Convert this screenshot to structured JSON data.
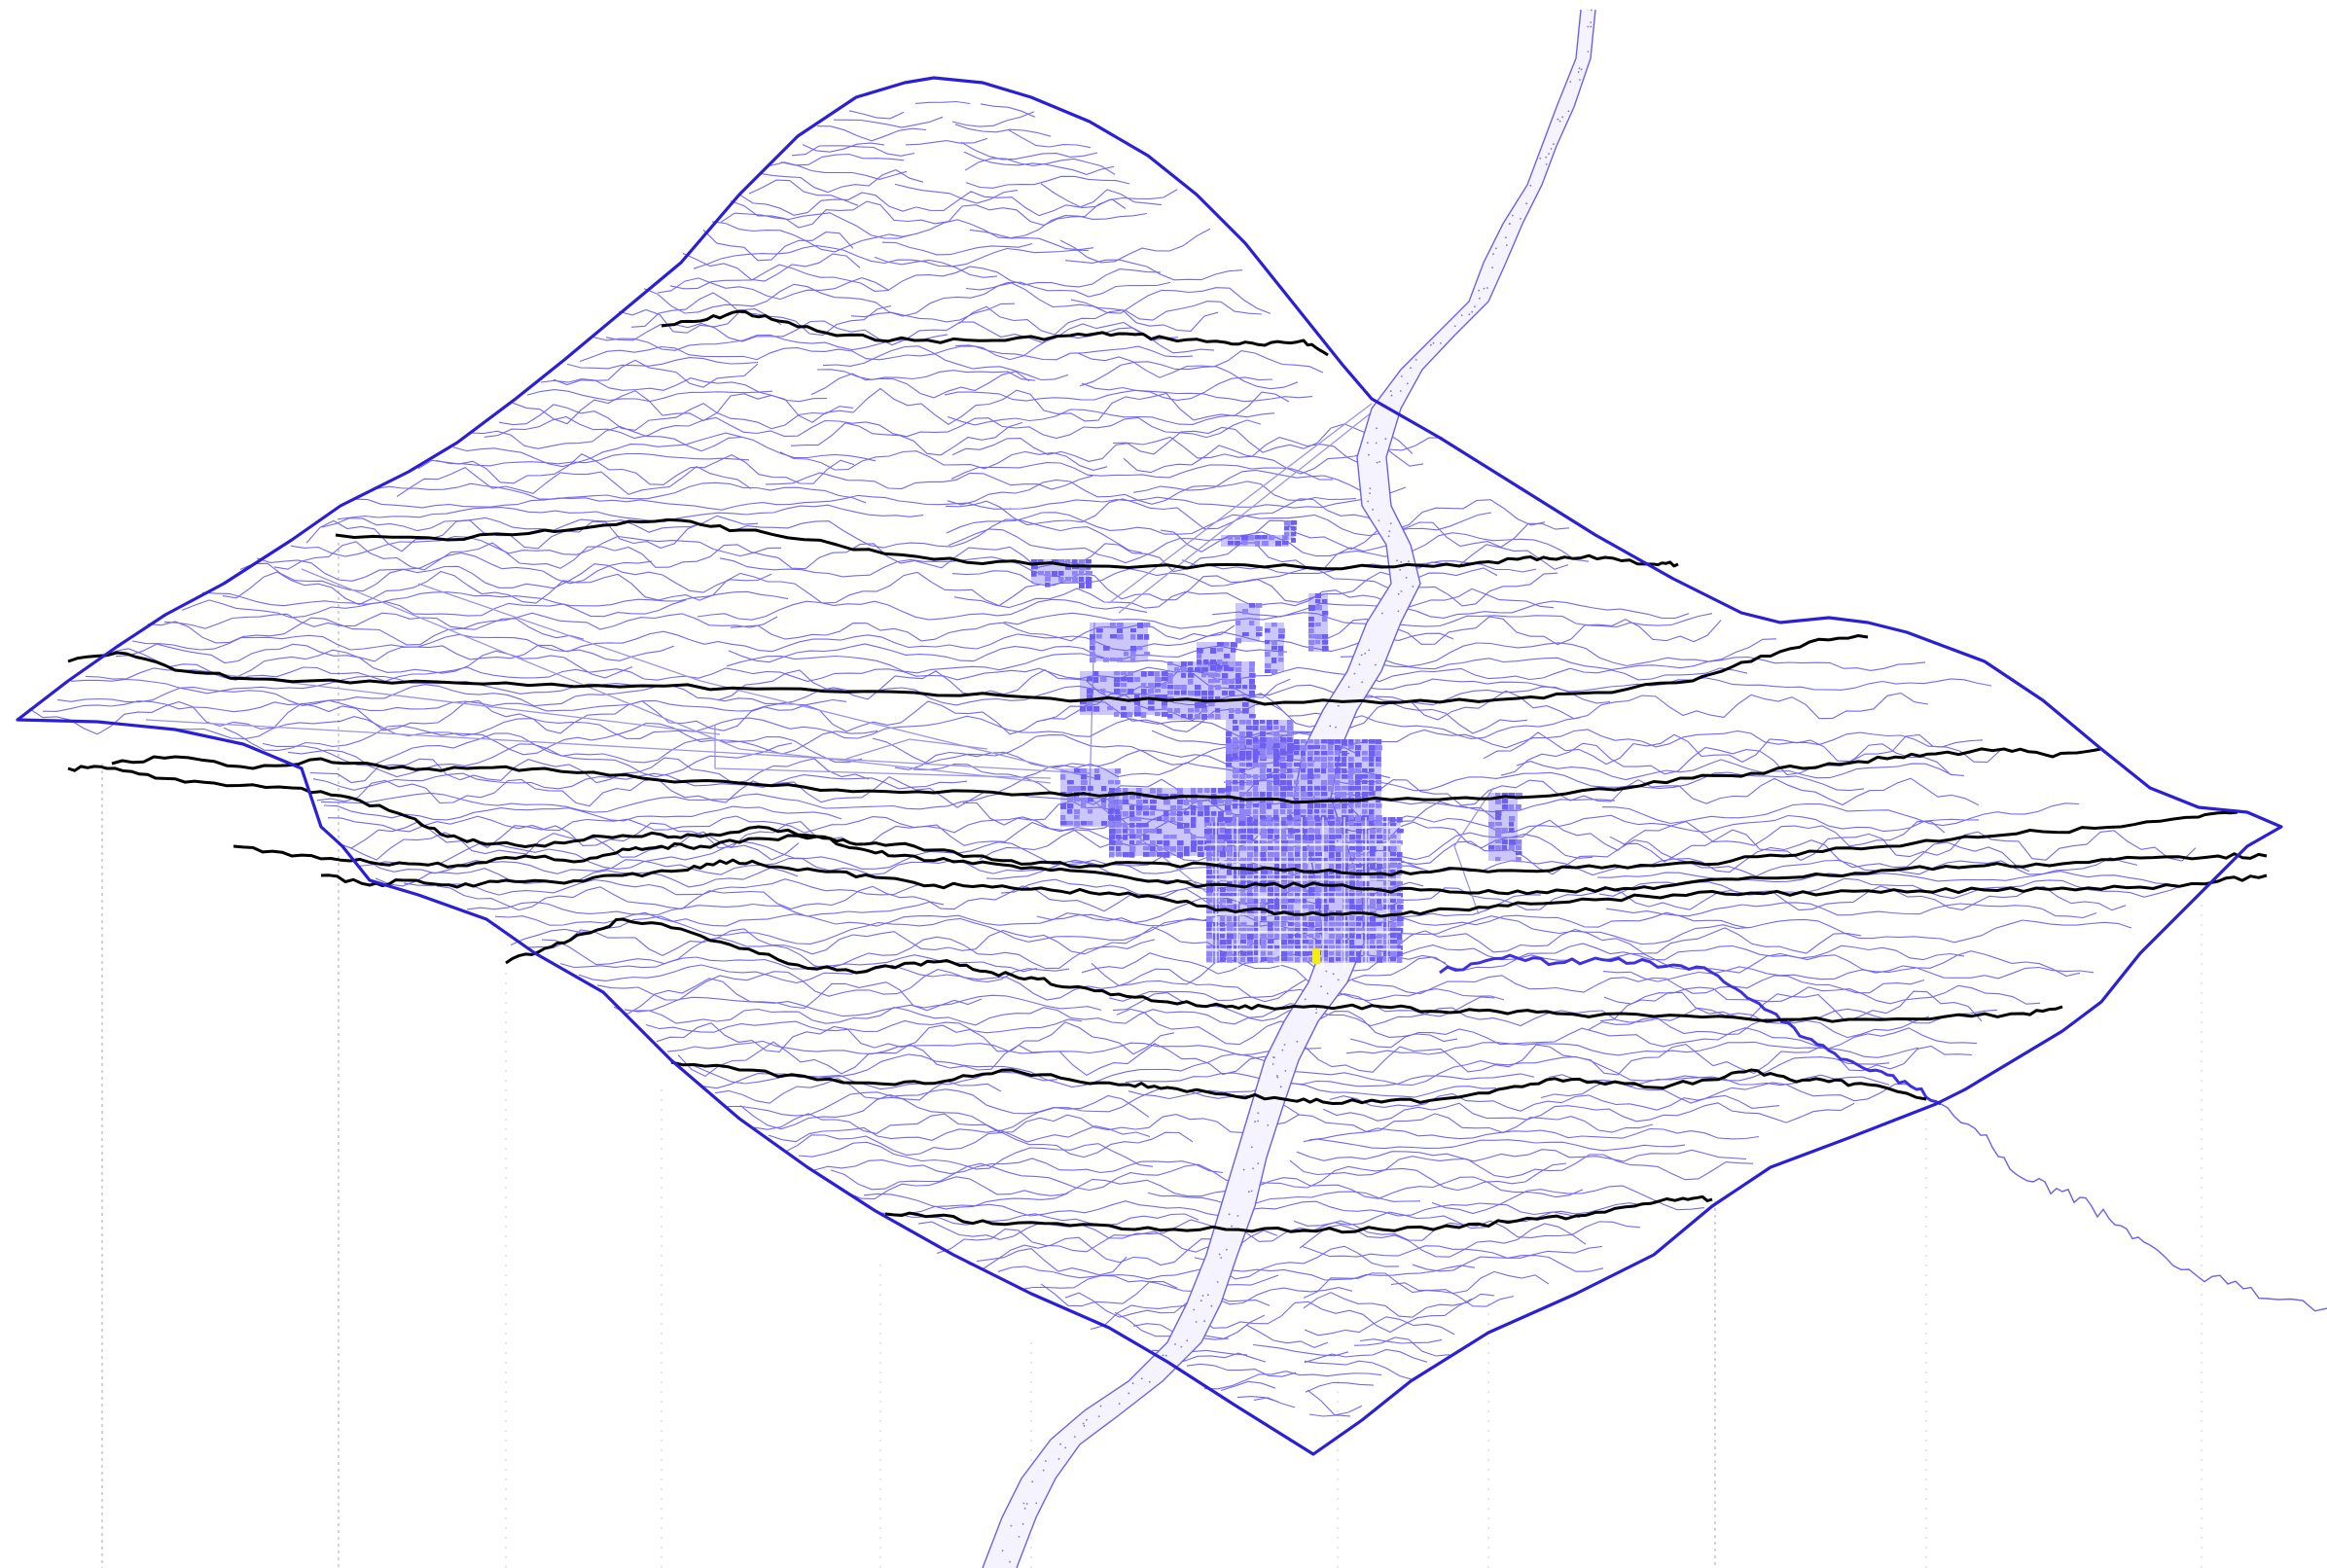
{
  "map": {
    "colors": {
      "background": "#ffffff",
      "boundary": "#2a1fd6",
      "contour": "#5a4ff0",
      "section_line": "#000000",
      "river": "#6a62e8",
      "river_stipple": "#7a74d8",
      "urban_fill": "#6d5ff2",
      "urban_block": "#8f84f5",
      "road": "#9a94e6",
      "guide_line": "#b8b8b8",
      "highlight": "#f4f000"
    },
    "layers": [
      "site-boundary",
      "topographic-contours",
      "section-lines",
      "river-channel",
      "tributary-stream",
      "urban-area",
      "roads",
      "vertical-guide-lines"
    ],
    "section_line_count": 10,
    "guide_line_count": 11,
    "text": []
  }
}
